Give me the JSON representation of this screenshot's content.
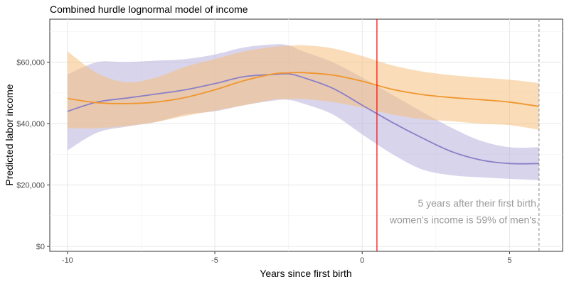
{
  "chart_data": {
    "type": "line",
    "title": "Combined hurdle lognormal model of income",
    "xlabel": "Years since first birth",
    "ylabel": "Predicted labor income",
    "xlim": [
      -10.6,
      6.8
    ],
    "ylim": [
      -1600,
      74000
    ],
    "x_ticks": [
      -10,
      -5,
      0,
      5
    ],
    "x_tick_labels": [
      "-10",
      "-5",
      "0",
      "5"
    ],
    "y_ticks": [
      0,
      20000,
      40000,
      60000
    ],
    "y_tick_labels": [
      "$0",
      "$20,000",
      "$40,000",
      "$60,000"
    ],
    "grid": true,
    "legend": "none",
    "x": [
      -10,
      -9,
      -8,
      -7,
      -6,
      -5,
      -4,
      -3,
      -2.5,
      -2,
      -1,
      0,
      1,
      2,
      3,
      4,
      5,
      6
    ],
    "series": [
      {
        "color": "#8b7fc6",
        "band_color": "#b8b0dd",
        "values": [
          44000,
          47000,
          48300,
          49600,
          51000,
          53000,
          55300,
          56000,
          56200,
          55000,
          51500,
          46000,
          40500,
          35500,
          31000,
          28200,
          27000,
          27000
        ],
        "lower": [
          31300,
          37000,
          39000,
          40500,
          43000,
          44000,
          46000,
          47500,
          47700,
          46500,
          43000,
          36500,
          30200,
          25200,
          23200,
          22500,
          22000,
          21600
        ],
        "upper": [
          56000,
          60000,
          60000,
          60500,
          61000,
          62500,
          64800,
          65800,
          65500,
          63500,
          60000,
          55000,
          49500,
          44000,
          38800,
          34500,
          32300,
          32300
        ]
      },
      {
        "color": "#f0962e",
        "band_color": "#f6c07e",
        "values": [
          48200,
          46800,
          46500,
          47000,
          48500,
          51000,
          54000,
          56200,
          56500,
          56600,
          55800,
          53800,
          51200,
          49500,
          48500,
          47800,
          47000,
          45600
        ],
        "lower": [
          38500,
          38500,
          39200,
          40500,
          42500,
          44200,
          46000,
          47800,
          48000,
          48000,
          47000,
          45200,
          43000,
          41500,
          40800,
          40000,
          39500,
          38000
        ],
        "upper": [
          63500,
          56500,
          53500,
          55000,
          58500,
          61000,
          63500,
          65000,
          65300,
          65500,
          64500,
          62000,
          59000,
          57000,
          55800,
          55000,
          54300,
          53200
        ]
      }
    ],
    "vlines": [
      {
        "x": 0.5,
        "color": "#ff0000",
        "style": "solid"
      },
      {
        "x": 6,
        "color": "#999999",
        "style": "dashed"
      }
    ],
    "annotation": {
      "lines": [
        "5 years after their first birth,",
        "women's income is 59% of men's."
      ],
      "x": 6,
      "y": [
        13000,
        7500
      ],
      "anchor": "end"
    }
  }
}
